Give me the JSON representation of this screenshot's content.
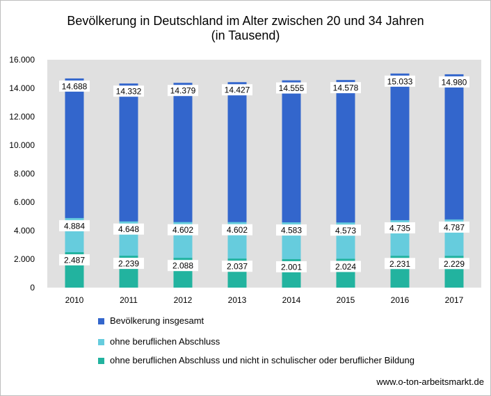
{
  "chart_data": {
    "type": "bar",
    "title": "Bevölkerung in Deutschland im Alter zwischen 20 und 34 Jahren",
    "subtitle": "(in Tausend)",
    "categories": [
      "2010",
      "2011",
      "2012",
      "2013",
      "2014",
      "2015",
      "2016",
      "2017"
    ],
    "series": [
      {
        "name": "Bevölkerung insgesamt",
        "color": "#3366cc",
        "values": [
          14688,
          14332,
          14379,
          14427,
          14555,
          14578,
          15033,
          14980
        ],
        "labels": [
          "14.688",
          "14.332",
          "14.379",
          "14.427",
          "14.555",
          "14.578",
          "15.033",
          "14.980"
        ]
      },
      {
        "name": "ohne beruflichen Abschluss",
        "color": "#66ccdd",
        "values": [
          4884,
          4648,
          4602,
          4602,
          4583,
          4573,
          4735,
          4787
        ],
        "labels": [
          "4.884",
          "4.648",
          "4.602",
          "4.602",
          "4.583",
          "4.573",
          "4.735",
          "4.787"
        ]
      },
      {
        "name": "ohne beruflichen Abschluss und nicht in schulischer oder beruflicher Bildung",
        "color": "#22b39f",
        "values": [
          2487,
          2239,
          2088,
          2037,
          2001,
          2024,
          2231,
          2229
        ],
        "labels": [
          "2.487",
          "2.239",
          "2.088",
          "2.037",
          "2.001",
          "2.024",
          "2.231",
          "2.229"
        ]
      }
    ],
    "ylim": [
      0,
      16000
    ],
    "yticks": [
      0,
      2000,
      4000,
      6000,
      8000,
      10000,
      12000,
      14000,
      16000
    ],
    "ytick_labels": [
      "0",
      "2.000",
      "4.000",
      "6.000",
      "8.000",
      "10.000",
      "12.000",
      "14.000",
      "16.000"
    ],
    "layering": "overlapping (each series drawn from 0, smaller in front)",
    "grid": false,
    "plot_background": "#e0e0e0",
    "legend_position": "bottom"
  },
  "source": "www.o-ton-arbeitsmarkt.de"
}
